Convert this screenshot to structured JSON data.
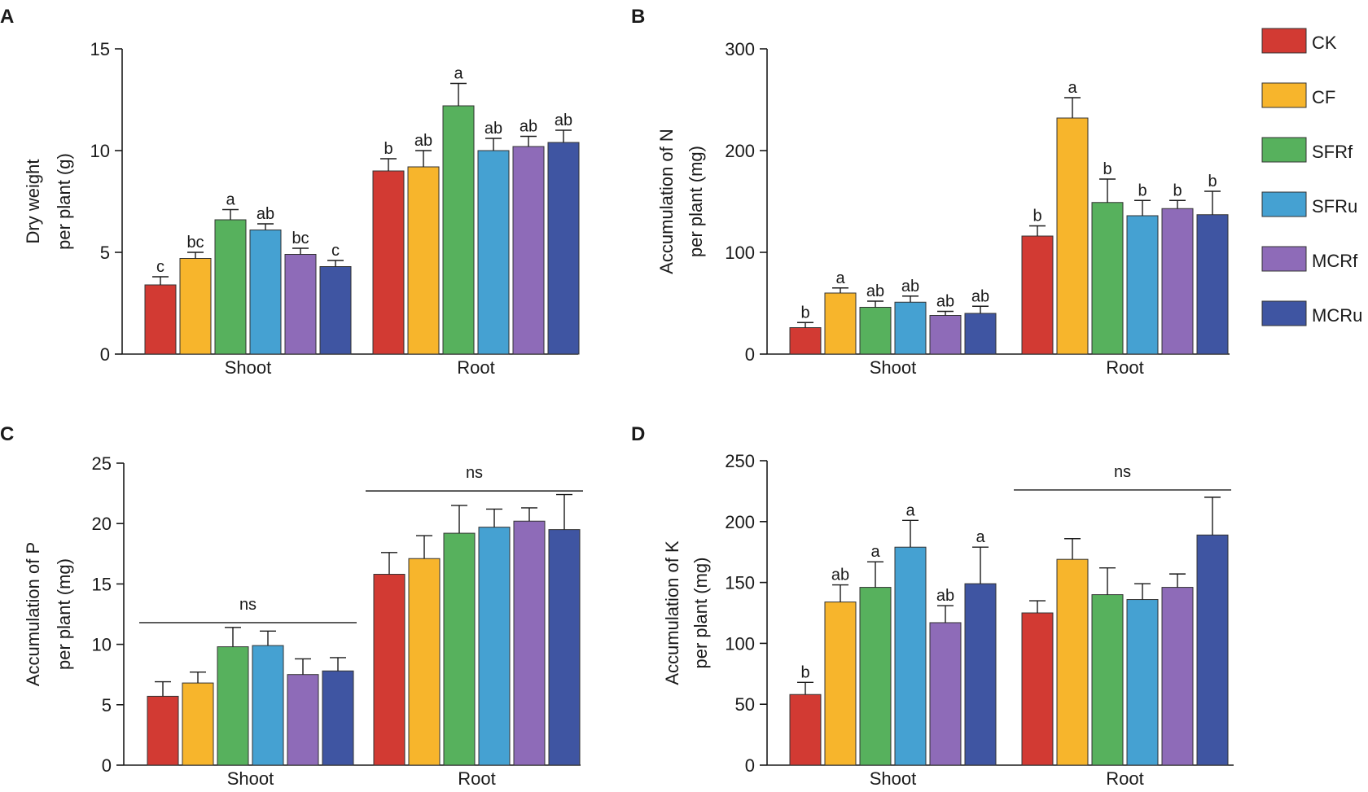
{
  "chart_data": [
    {
      "type": "bar",
      "panel": "A",
      "categories": [
        "Shoot",
        "Root"
      ],
      "series": [
        {
          "name": "CK",
          "values": [
            3.4,
            9.0
          ],
          "errors": [
            0.4,
            0.6
          ],
          "labels": [
            "c",
            "b"
          ]
        },
        {
          "name": "CF",
          "values": [
            4.7,
            9.2
          ],
          "errors": [
            0.3,
            0.8
          ],
          "labels": [
            "bc",
            "ab"
          ]
        },
        {
          "name": "SFRf",
          "values": [
            6.6,
            12.2
          ],
          "errors": [
            0.5,
            1.1
          ],
          "labels": [
            "a",
            "a"
          ]
        },
        {
          "name": "SFRu",
          "values": [
            6.1,
            10.0
          ],
          "errors": [
            0.3,
            0.6
          ],
          "labels": [
            "ab",
            "ab"
          ]
        },
        {
          "name": "MCRf",
          "values": [
            4.9,
            10.2
          ],
          "errors": [
            0.3,
            0.5
          ],
          "labels": [
            "bc",
            "ab"
          ]
        },
        {
          "name": "MCRu",
          "values": [
            4.3,
            10.4
          ],
          "errors": [
            0.3,
            0.6
          ],
          "labels": [
            "c",
            "ab"
          ]
        }
      ],
      "ylabel_line1": "Dry weight",
      "ylabel_line2": "per plant (g)",
      "ylim": [
        0,
        15
      ],
      "yticks": [
        0,
        5,
        10,
        15
      ],
      "ns": []
    },
    {
      "type": "bar",
      "panel": "B",
      "categories": [
        "Shoot",
        "Root"
      ],
      "series": [
        {
          "name": "CK",
          "values": [
            26,
            116
          ],
          "errors": [
            5,
            10
          ],
          "labels": [
            "b",
            "b"
          ]
        },
        {
          "name": "CF",
          "values": [
            60,
            232
          ],
          "errors": [
            5,
            20
          ],
          "labels": [
            "a",
            "a"
          ]
        },
        {
          "name": "SFRf",
          "values": [
            46,
            149
          ],
          "errors": [
            6,
            23
          ],
          "labels": [
            "ab",
            "b"
          ]
        },
        {
          "name": "SFRu",
          "values": [
            51,
            136
          ],
          "errors": [
            6,
            15
          ],
          "labels": [
            "ab",
            "b"
          ]
        },
        {
          "name": "MCRf",
          "values": [
            38,
            143
          ],
          "errors": [
            4,
            8
          ],
          "labels": [
            "ab",
            "b"
          ]
        },
        {
          "name": "MCRu",
          "values": [
            40,
            137
          ],
          "errors": [
            7,
            23
          ],
          "labels": [
            "ab",
            "b"
          ]
        }
      ],
      "ylabel_line1": "Accumulation of N",
      "ylabel_line2": "per plant (mg)",
      "ylim": [
        0,
        300
      ],
      "yticks": [
        0,
        100,
        200,
        300
      ],
      "ns": []
    },
    {
      "type": "bar",
      "panel": "C",
      "categories": [
        "Shoot",
        "Root"
      ],
      "series": [
        {
          "name": "CK",
          "values": [
            5.7,
            15.8
          ],
          "errors": [
            1.2,
            1.8
          ]
        },
        {
          "name": "CF",
          "values": [
            6.8,
            17.1
          ],
          "errors": [
            0.9,
            1.9
          ]
        },
        {
          "name": "SFRf",
          "values": [
            9.8,
            19.2
          ],
          "errors": [
            1.6,
            2.3
          ]
        },
        {
          "name": "SFRu",
          "values": [
            9.9,
            19.7
          ],
          "errors": [
            1.2,
            1.5
          ]
        },
        {
          "name": "MCRf",
          "values": [
            7.5,
            20.2
          ],
          "errors": [
            1.3,
            1.1
          ]
        },
        {
          "name": "MCRu",
          "values": [
            7.8,
            19.5
          ],
          "errors": [
            1.1,
            2.9
          ]
        }
      ],
      "ylabel_line1": "Accumulation of P",
      "ylabel_line2": "per plant (mg)",
      "ylim": [
        0,
        25
      ],
      "yticks": [
        0,
        5,
        10,
        15,
        20,
        25
      ],
      "ns": [
        {
          "group": "Shoot",
          "text": "ns",
          "y": 11.8
        },
        {
          "group": "Root",
          "text": "ns",
          "y": 22.7
        }
      ]
    },
    {
      "type": "bar",
      "panel": "D",
      "categories": [
        "Shoot",
        "Root"
      ],
      "series": [
        {
          "name": "CK",
          "values": [
            58,
            125
          ],
          "errors": [
            10,
            10
          ],
          "labels": [
            "b",
            ""
          ]
        },
        {
          "name": "CF",
          "values": [
            134,
            169
          ],
          "errors": [
            14,
            17
          ],
          "labels": [
            "ab",
            ""
          ]
        },
        {
          "name": "SFRf",
          "values": [
            146,
            140
          ],
          "errors": [
            21,
            22
          ],
          "labels": [
            "a",
            ""
          ]
        },
        {
          "name": "SFRu",
          "values": [
            179,
            136
          ],
          "errors": [
            22,
            13
          ],
          "labels": [
            "a",
            ""
          ]
        },
        {
          "name": "MCRf",
          "values": [
            117,
            146
          ],
          "errors": [
            14,
            11
          ],
          "labels": [
            "ab",
            ""
          ]
        },
        {
          "name": "MCRu",
          "values": [
            149,
            189
          ],
          "errors": [
            30,
            31
          ],
          "labels": [
            "a",
            ""
          ]
        }
      ],
      "ylabel_line1": "Accumulation of K",
      "ylabel_line2": "per plant (mg)",
      "ylim": [
        0,
        250
      ],
      "yticks": [
        0,
        50,
        100,
        150,
        200,
        250
      ],
      "ns": [
        {
          "group": "Root",
          "text": "ns",
          "y": 226
        }
      ]
    }
  ],
  "legend": [
    {
      "name": "CK",
      "color": "#d23a33"
    },
    {
      "name": "CF",
      "color": "#f7b52c"
    },
    {
      "name": "SFRf",
      "color": "#57b15d"
    },
    {
      "name": "SFRu",
      "color": "#45a1d2"
    },
    {
      "name": "MCRf",
      "color": "#8e6bb8"
    },
    {
      "name": "MCRu",
      "color": "#3f55a2"
    }
  ]
}
